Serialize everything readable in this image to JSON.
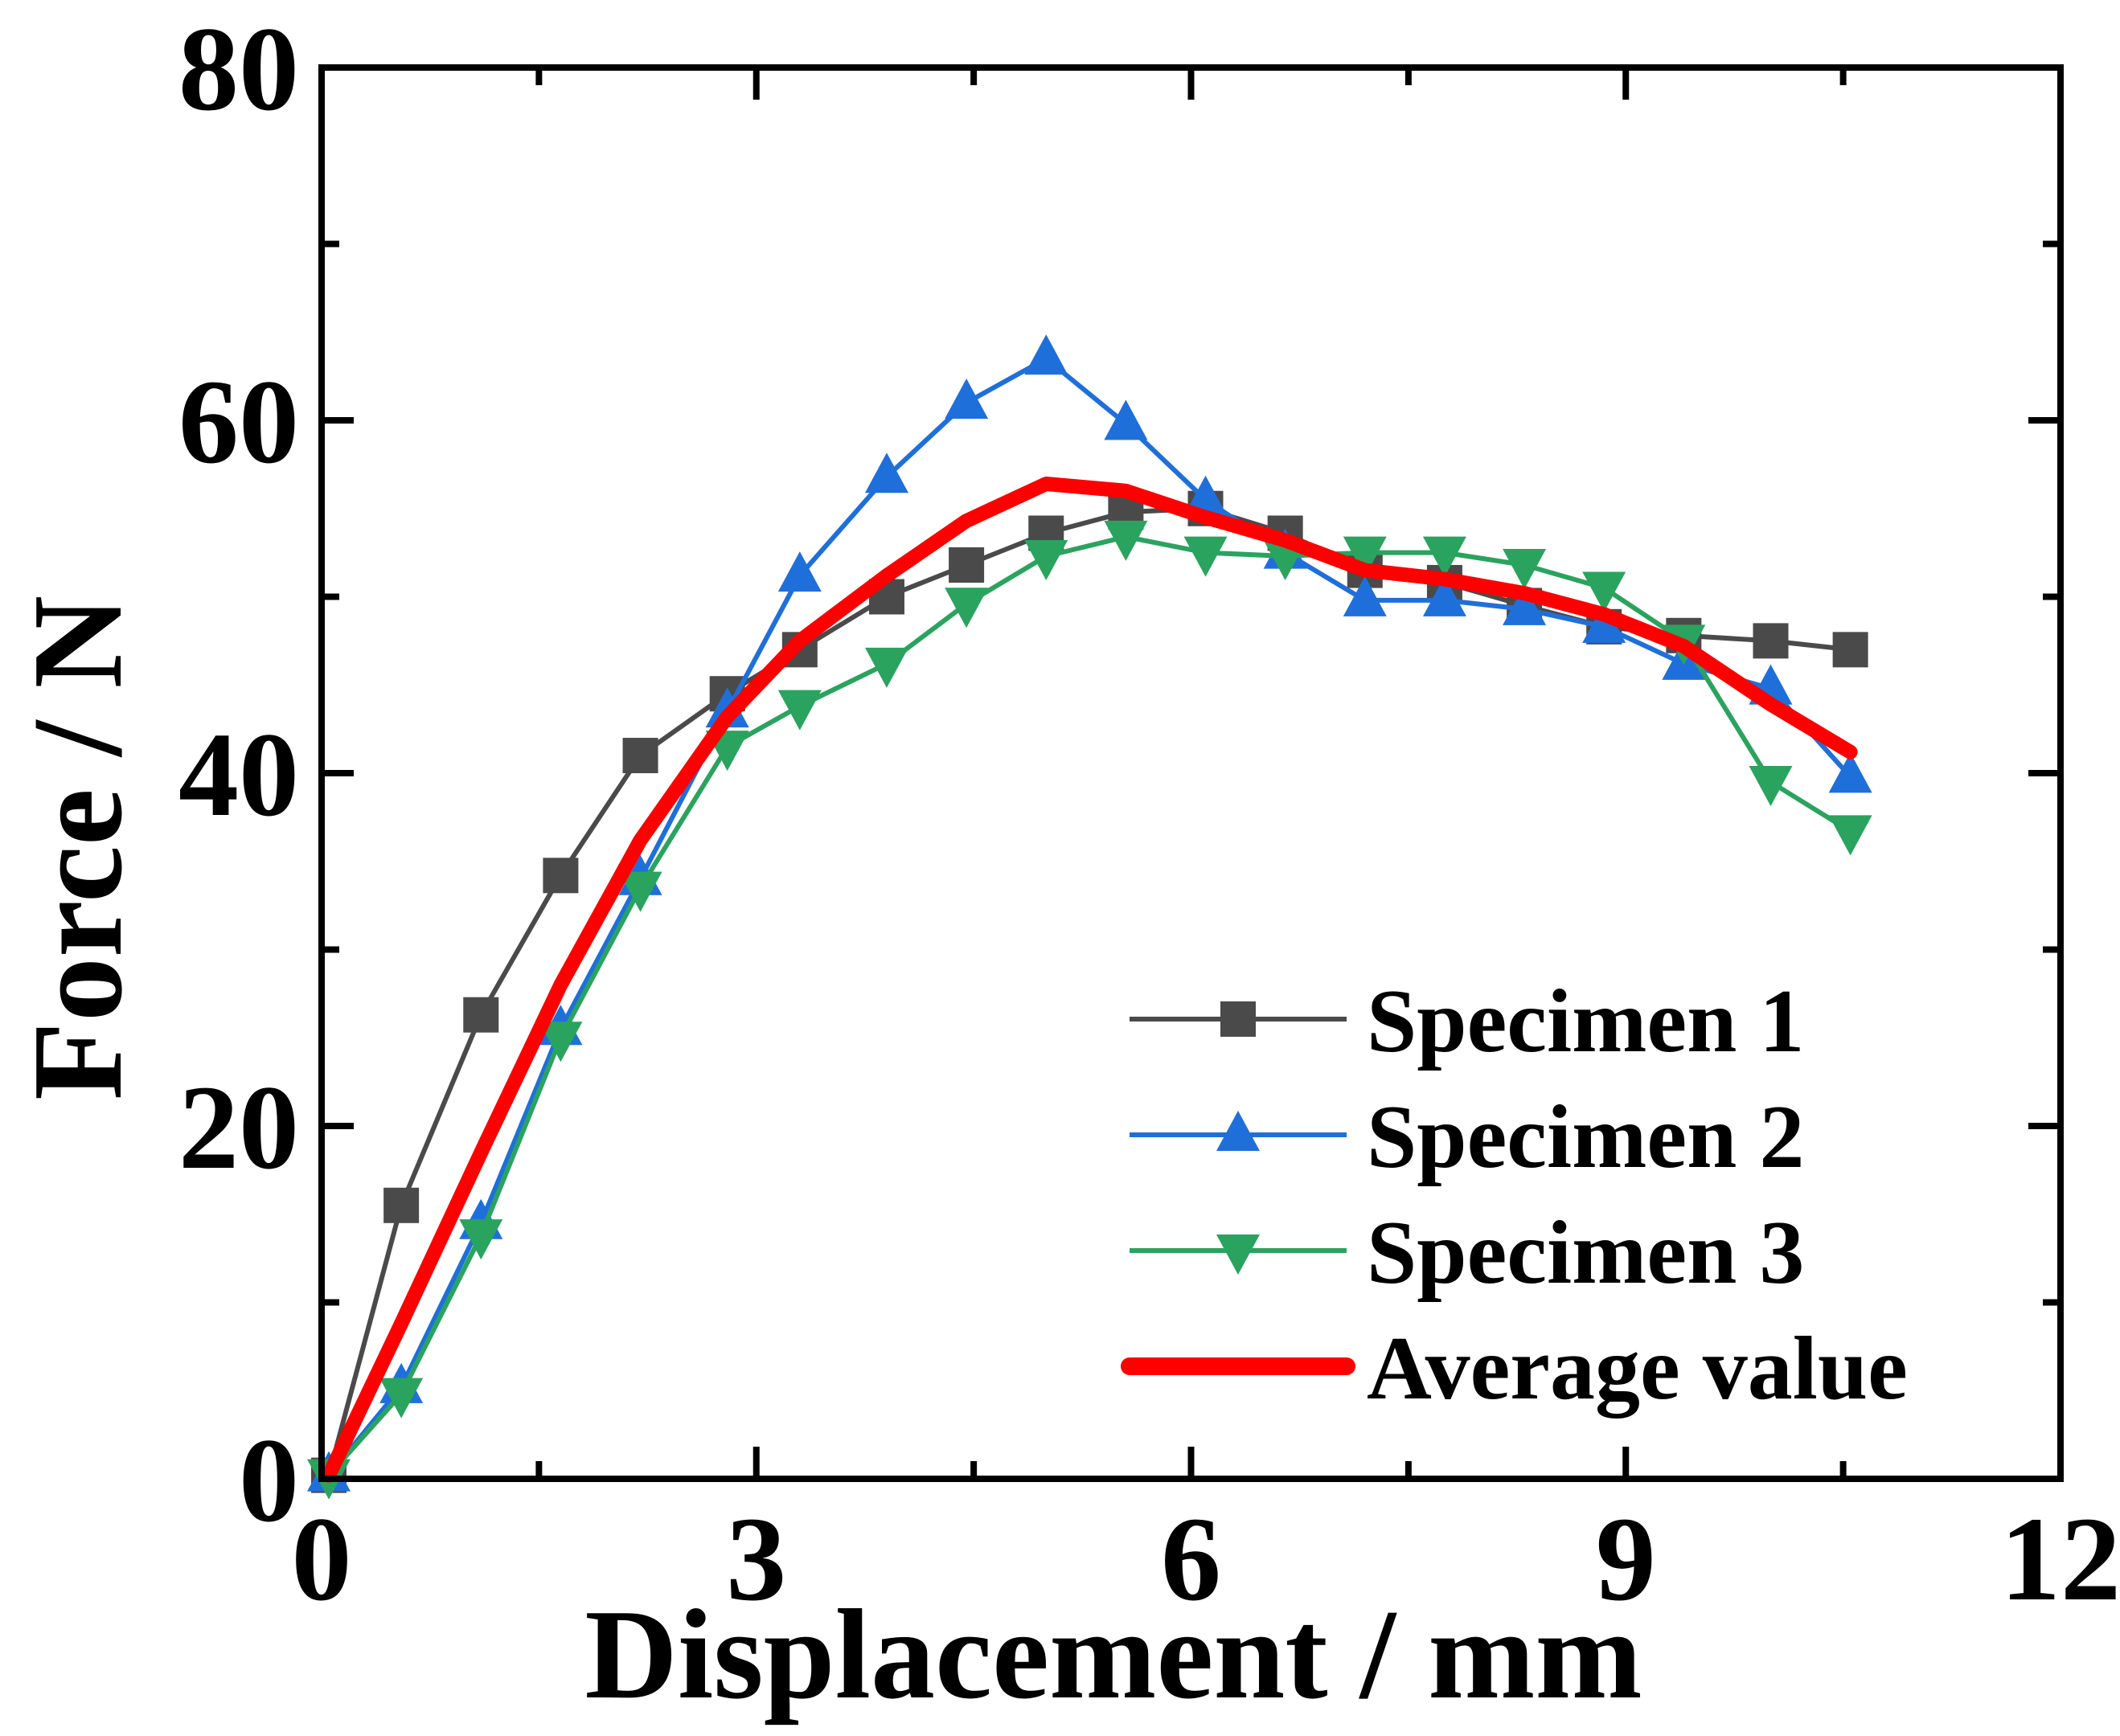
{
  "chart_data": {
    "type": "line",
    "title": "",
    "xlabel": "Displacement / mm",
    "ylabel": "Force / N",
    "xlim": [
      0,
      12
    ],
    "ylim": [
      0,
      80
    ],
    "xticks": [
      0,
      3,
      6,
      9,
      12
    ],
    "yticks": [
      0,
      20,
      40,
      60,
      80
    ],
    "xtick_labels": [
      "0",
      "3",
      "6",
      "9",
      "12"
    ],
    "ytick_labels": [
      "0",
      "20",
      "40",
      "60",
      "80"
    ],
    "grid": false,
    "legend_position": "bottom-right",
    "series": [
      {
        "name": "Specimen 1",
        "color": "#4a4a4a",
        "marker": "square",
        "x": [
          0.05,
          0.55,
          1.1,
          1.65,
          2.2,
          2.8,
          3.3,
          3.9,
          4.45,
          5.0,
          5.55,
          6.1,
          6.65,
          7.2,
          7.75,
          8.3,
          8.85,
          9.4,
          10.0,
          10.55
        ],
        "y": [
          0.2,
          15.5,
          26.3,
          34.2,
          41.0,
          44.5,
          47.0,
          50.0,
          51.8,
          53.6,
          54.8,
          55.0,
          53.6,
          51.5,
          50.8,
          49.5,
          48.3,
          47.8,
          47.5,
          47.0
        ]
      },
      {
        "name": "Specimen 2",
        "color": "#1f6fdb",
        "marker": "triangle-up",
        "x": [
          0.05,
          0.55,
          1.1,
          1.65,
          2.2,
          2.8,
          3.3,
          3.9,
          4.45,
          5.0,
          5.55,
          6.1,
          6.65,
          7.2,
          7.75,
          8.3,
          8.85,
          9.4,
          10.0,
          10.55
        ],
        "y": [
          0.2,
          5.2,
          14.5,
          25.5,
          34.0,
          43.5,
          51.2,
          56.8,
          61.0,
          63.5,
          59.8,
          55.5,
          52.5,
          49.8,
          49.8,
          49.3,
          48.3,
          46.2,
          44.8,
          39.8
        ]
      },
      {
        "name": "Specimen 3",
        "color": "#2aa35f",
        "marker": "triangle-down",
        "x": [
          0.05,
          0.55,
          1.1,
          1.65,
          2.2,
          2.8,
          3.3,
          3.9,
          4.45,
          5.0,
          5.55,
          6.1,
          6.65,
          7.2,
          7.75,
          8.3,
          8.85,
          9.4,
          10.0,
          10.55
        ],
        "y": [
          0.2,
          4.8,
          13.8,
          25.0,
          33.5,
          41.5,
          43.8,
          46.2,
          49.6,
          52.3,
          53.4,
          52.5,
          52.3,
          52.5,
          52.5,
          51.8,
          50.5,
          47.5,
          39.5,
          36.7
        ]
      },
      {
        "name": "Average value",
        "color": "#ff0000",
        "marker": "none",
        "x": [
          0.05,
          0.55,
          1.1,
          1.65,
          2.2,
          2.8,
          3.3,
          3.9,
          4.45,
          5.0,
          5.55,
          6.1,
          6.65,
          7.2,
          7.75,
          8.3,
          8.85,
          9.4,
          10.0,
          10.55
        ],
        "y": [
          0.2,
          8.8,
          18.5,
          28.0,
          36.2,
          43.2,
          47.5,
          51.2,
          54.3,
          56.4,
          56.0,
          54.5,
          53.2,
          51.5,
          51.0,
          50.2,
          49.0,
          47.2,
          43.9,
          41.2
        ]
      }
    ]
  }
}
